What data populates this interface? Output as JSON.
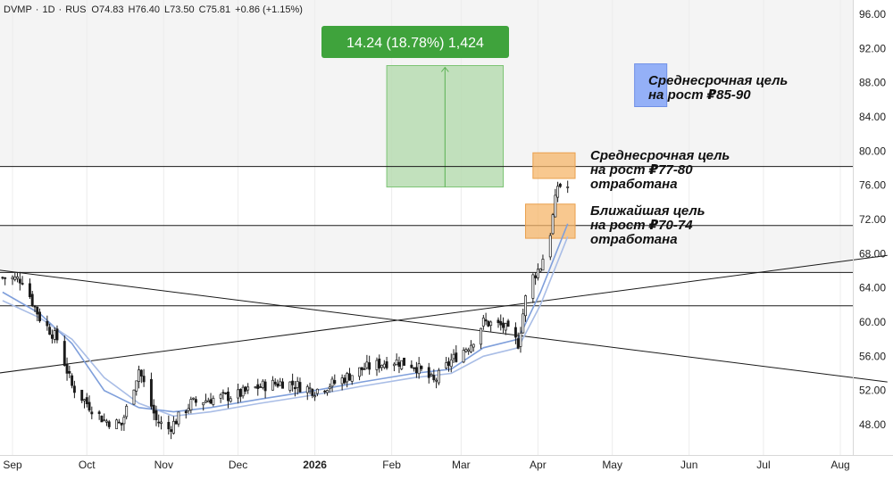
{
  "header": {
    "symbol": "DVMP",
    "interval": "1D",
    "exchange": "RUS",
    "open": "O74.83",
    "high": "H76.40",
    "low": "L73.50",
    "close": "C75.81",
    "change": "+0.86 (+1.15%)"
  },
  "measure_label": "14.24 (18.78%) 1,424",
  "annotations": {
    "mid_target_1": "Среднесрочная цель",
    "mid_target_2": "на рост ₽85-90",
    "target_77_1": "Среднесрочная цель",
    "target_77_2": "на рост ₽77-80",
    "target_77_3": "отработана",
    "target_70_1": "Ближайшая цель",
    "target_70_2": "на рост ₽70-74",
    "target_70_3": "отработана"
  },
  "colors": {
    "up": "#1a1a1a",
    "down": "#1a1a1a",
    "ma_fast": "#7f9fdb",
    "ma_slow": "#a9bde6",
    "measure_fill": "#b7dcb2",
    "measure_label_bg": "#3fa33c",
    "zone_orange": "#f6b56a",
    "zone_blue": "#8aa9f7"
  },
  "chart_data": {
    "type": "candlestick",
    "ylim": [
      44,
      96
    ],
    "y_ticks": [
      "48.00",
      "52.00",
      "56.00",
      "60.00",
      "64.00",
      "68.00",
      "72.00",
      "76.00",
      "80.00",
      "84.00",
      "88.00",
      "92.00",
      "96.00"
    ],
    "x_ticks": [
      {
        "label": "Sep",
        "date": "2025-09-01",
        "bold": false
      },
      {
        "label": "Oct",
        "date": "2025-10-01",
        "bold": false
      },
      {
        "label": "Nov",
        "date": "2025-11-01",
        "bold": false
      },
      {
        "label": "Dec",
        "date": "2025-12-01",
        "bold": false
      },
      {
        "label": "2026",
        "date": "2026-01-01",
        "bold": true
      },
      {
        "label": "Feb",
        "date": "2026-02-01",
        "bold": false
      },
      {
        "label": "Mar",
        "date": "2026-03-01",
        "bold": false
      },
      {
        "label": "Apr",
        "date": "2026-04-01",
        "bold": false
      },
      {
        "label": "May",
        "date": "2026-05-01",
        "bold": false
      },
      {
        "label": "Jun",
        "date": "2026-06-01",
        "bold": false
      },
      {
        "label": "Jul",
        "date": "2026-07-01",
        "bold": false
      },
      {
        "label": "Aug",
        "date": "2026-08-01",
        "bold": false
      }
    ],
    "close_path": [
      {
        "date": "2025-08-28",
        "value": 65.2
      },
      {
        "date": "2025-09-05",
        "value": 65.0
      },
      {
        "date": "2025-09-12",
        "value": 60.5
      },
      {
        "date": "2025-09-19",
        "value": 58.0
      },
      {
        "date": "2025-09-25",
        "value": 52.5
      },
      {
        "date": "2025-10-01",
        "value": 50.5
      },
      {
        "date": "2025-10-08",
        "value": 48.5
      },
      {
        "date": "2025-10-15",
        "value": 48.0
      },
      {
        "date": "2025-10-22",
        "value": 54.5
      },
      {
        "date": "2025-10-29",
        "value": 48.5
      },
      {
        "date": "2025-11-03",
        "value": 47.5
      },
      {
        "date": "2025-11-12",
        "value": 50.5
      },
      {
        "date": "2025-11-20",
        "value": 51.0
      },
      {
        "date": "2025-12-01",
        "value": 51.5
      },
      {
        "date": "2025-12-10",
        "value": 52.5
      },
      {
        "date": "2025-12-20",
        "value": 53.0
      },
      {
        "date": "2026-01-01",
        "value": 52.0
      },
      {
        "date": "2026-01-10",
        "value": 53.0
      },
      {
        "date": "2026-01-20",
        "value": 54.5
      },
      {
        "date": "2026-02-01",
        "value": 55.5
      },
      {
        "date": "2026-02-10",
        "value": 55.0
      },
      {
        "date": "2026-02-18",
        "value": 53.0
      },
      {
        "date": "2026-02-25",
        "value": 55.5
      },
      {
        "date": "2026-03-05",
        "value": 57.5
      },
      {
        "date": "2026-03-10",
        "value": 60.0
      },
      {
        "date": "2026-03-18",
        "value": 59.5
      },
      {
        "date": "2026-03-24",
        "value": 57.5
      },
      {
        "date": "2026-03-28",
        "value": 64.5
      },
      {
        "date": "2026-04-02",
        "value": 66.5
      },
      {
        "date": "2026-04-06",
        "value": 70.5
      },
      {
        "date": "2026-04-09",
        "value": 76.0
      },
      {
        "date": "2026-04-13",
        "value": 75.8
      }
    ],
    "moving_averages": [
      {
        "points": [
          {
            "date": "2025-08-28",
            "value": 63.5
          },
          {
            "date": "2025-09-12",
            "value": 61.0
          },
          {
            "date": "2025-09-25",
            "value": 57.5
          },
          {
            "date": "2025-10-08",
            "value": 52.0
          },
          {
            "date": "2025-10-22",
            "value": 50.0
          },
          {
            "date": "2025-11-05",
            "value": 49.5
          },
          {
            "date": "2025-11-20",
            "value": 50.0
          },
          {
            "date": "2025-12-10",
            "value": 51.0
          },
          {
            "date": "2026-01-01",
            "value": 52.0
          },
          {
            "date": "2026-01-20",
            "value": 53.0
          },
          {
            "date": "2026-02-10",
            "value": 54.0
          },
          {
            "date": "2026-02-25",
            "value": 54.5
          },
          {
            "date": "2026-03-10",
            "value": 57.0
          },
          {
            "date": "2026-03-24",
            "value": 58.0
          },
          {
            "date": "2026-04-02",
            "value": 63.5
          },
          {
            "date": "2026-04-13",
            "value": 71.5
          }
        ]
      },
      {
        "points": [
          {
            "date": "2025-08-28",
            "value": 62.5
          },
          {
            "date": "2025-09-12",
            "value": 60.5
          },
          {
            "date": "2025-09-25",
            "value": 58.0
          },
          {
            "date": "2025-10-08",
            "value": 53.5
          },
          {
            "date": "2025-10-22",
            "value": 50.5
          },
          {
            "date": "2025-11-05",
            "value": 49.0
          },
          {
            "date": "2025-11-20",
            "value": 49.5
          },
          {
            "date": "2025-12-10",
            "value": 50.5
          },
          {
            "date": "2026-01-01",
            "value": 51.5
          },
          {
            "date": "2026-01-20",
            "value": 52.5
          },
          {
            "date": "2026-02-10",
            "value": 53.5
          },
          {
            "date": "2026-02-25",
            "value": 54.0
          },
          {
            "date": "2026-03-10",
            "value": 56.0
          },
          {
            "date": "2026-03-24",
            "value": 57.0
          },
          {
            "date": "2026-04-02",
            "value": 62.0
          },
          {
            "date": "2026-04-13",
            "value": 70.0
          }
        ]
      }
    ],
    "horizontal_levels": [
      78.2,
      71.3,
      65.8,
      61.9
    ],
    "trendlines": [
      {
        "from": {
          "date": "2025-08-15",
          "value": 66.5
        },
        "to": {
          "date": "2026-08-20",
          "value": 53.0
        }
      },
      {
        "from": {
          "date": "2025-08-15",
          "value": 53.6
        },
        "to": {
          "date": "2026-08-20",
          "value": 67.8
        }
      }
    ],
    "measure": {
      "x0": "2026-01-30",
      "x1": "2026-03-18",
      "y0": 75.8,
      "y1": 90.0
    },
    "zones": [
      {
        "x0": "2026-03-30",
        "x1": "2026-04-16",
        "y0": 76.8,
        "y1": 79.8,
        "color": "orange"
      },
      {
        "x0": "2026-03-27",
        "x1": "2026-04-16",
        "y0": 69.8,
        "y1": 73.8,
        "color": "orange"
      },
      {
        "x0": "2026-05-10",
        "x1": "2026-05-23",
        "y0": 85.2,
        "y1": 90.2,
        "color": "blue"
      }
    ]
  }
}
